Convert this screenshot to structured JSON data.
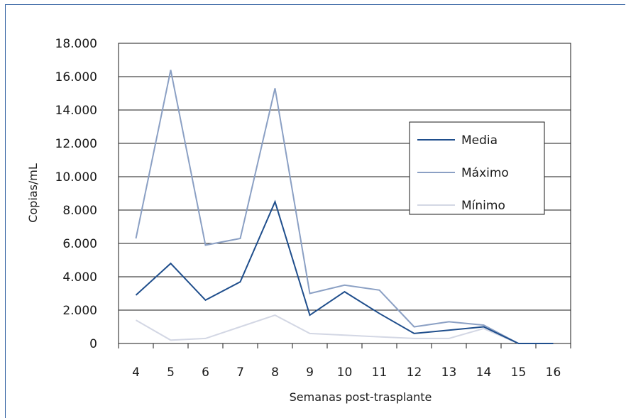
{
  "chart_data": {
    "type": "line",
    "xlabel": "Semanas post-trasplante",
    "ylabel": "Copias/mL",
    "categories": [
      "4",
      "5",
      "6",
      "7",
      "8",
      "9",
      "10",
      "11",
      "12",
      "13",
      "14",
      "15",
      "16"
    ],
    "y_ticks": [
      "0",
      "2.000",
      "4.000",
      "6.000",
      "8.000",
      "10.000",
      "12.000",
      "14.000",
      "16.000",
      "18.000"
    ],
    "ylim": [
      0,
      18000
    ],
    "grid": true,
    "legend_position": "right",
    "series": [
      {
        "name": "Media",
        "color": "#1f4e8c",
        "values": [
          2900,
          4800,
          2600,
          3700,
          8500,
          1700,
          3100,
          1800,
          600,
          800,
          1000,
          0,
          0
        ]
      },
      {
        "name": "Máximo",
        "color": "#8ba0c4",
        "values": [
          6300,
          16400,
          5900,
          6300,
          15300,
          3000,
          3500,
          3200,
          1000,
          1300,
          1100,
          0,
          0
        ]
      },
      {
        "name": "Mínimo",
        "color": "#d3d7e4",
        "values": [
          1400,
          200,
          300,
          1000,
          1700,
          600,
          500,
          400,
          300,
          300,
          900,
          0,
          0
        ]
      }
    ]
  }
}
